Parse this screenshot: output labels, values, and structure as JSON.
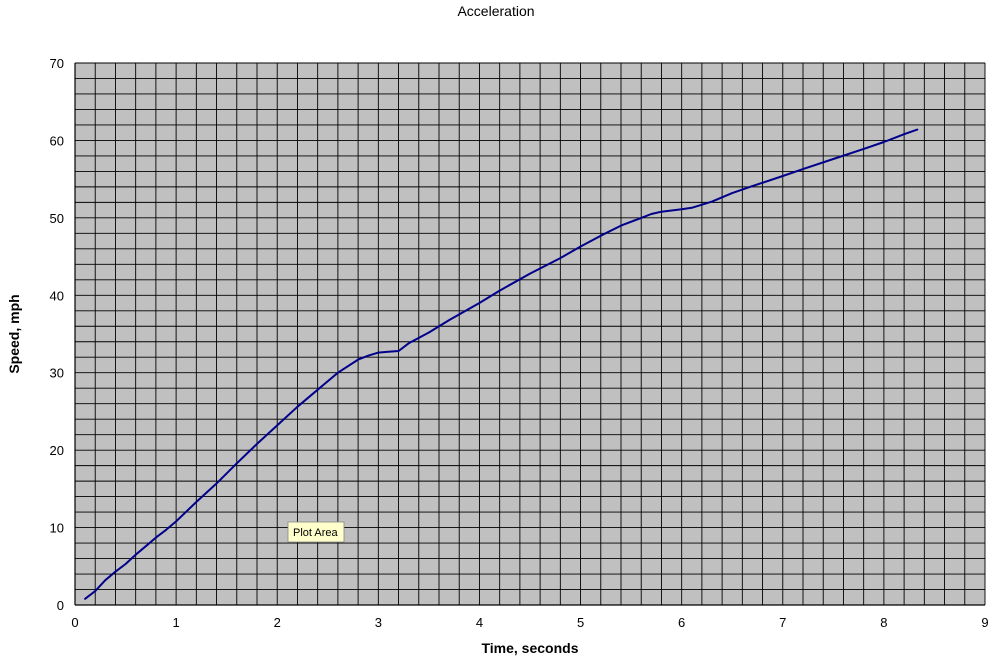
{
  "chart_data": {
    "type": "line",
    "title": "Acceleration",
    "xlabel": "Time, seconds",
    "ylabel": "Speed, mph",
    "xlim": [
      0,
      9
    ],
    "ylim": [
      0,
      70
    ],
    "x_ticks": [
      0,
      1,
      2,
      3,
      4,
      5,
      6,
      7,
      8,
      9
    ],
    "y_ticks": [
      0,
      10,
      20,
      30,
      40,
      50,
      60,
      70
    ],
    "grid": true,
    "plot_background": "#c0c0c0",
    "grid_color": "#000000",
    "series": [
      {
        "color": "#00008b",
        "x": [
          0.1,
          0.2,
          0.3,
          0.4,
          0.5,
          0.6,
          0.7,
          0.8,
          0.9,
          1.0,
          1.2,
          1.4,
          1.6,
          1.8,
          2.0,
          2.2,
          2.4,
          2.6,
          2.8,
          2.9,
          3.0,
          3.1,
          3.2,
          3.3,
          3.5,
          3.7,
          4.0,
          4.2,
          4.5,
          4.8,
          5.0,
          5.2,
          5.4,
          5.6,
          5.7,
          5.8,
          6.0,
          6.1,
          6.3,
          6.5,
          6.7,
          7.0,
          7.2,
          7.5,
          7.8,
          8.0,
          8.2,
          8.33
        ],
        "y": [
          0.8,
          1.8,
          3.2,
          4.3,
          5.3,
          6.5,
          7.6,
          8.7,
          9.7,
          10.8,
          13.3,
          15.7,
          18.3,
          20.8,
          23.2,
          25.6,
          27.8,
          30.0,
          31.7,
          32.2,
          32.6,
          32.7,
          32.8,
          33.8,
          35.2,
          36.8,
          39.0,
          40.6,
          42.8,
          44.8,
          46.3,
          47.7,
          49.0,
          50.0,
          50.5,
          50.8,
          51.1,
          51.3,
          52.1,
          53.2,
          54.1,
          55.4,
          56.3,
          57.6,
          58.9,
          59.8,
          60.8,
          61.4
        ]
      }
    ]
  },
  "tooltip": {
    "label": "Plot Area"
  }
}
